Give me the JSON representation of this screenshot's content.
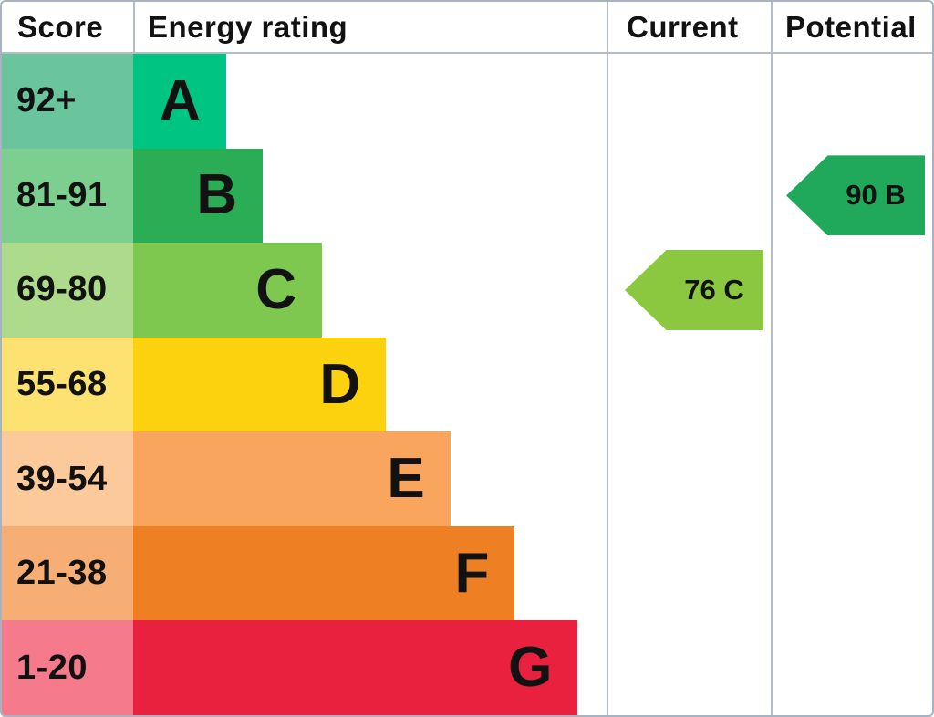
{
  "header": {
    "score": "Score",
    "energy_rating": "Energy rating",
    "current": "Current",
    "potential": "Potential"
  },
  "bands": [
    {
      "letter": "A",
      "score_range": "92+",
      "row_color": "#6ac49c",
      "bar_color": "#00c482",
      "bar_width_pct": 19.6
    },
    {
      "letter": "B",
      "score_range": "81-91",
      "row_color": "#7ccf8e",
      "bar_color": "#2bad55",
      "bar_width_pct": 27.4
    },
    {
      "letter": "C",
      "score_range": "69-80",
      "row_color": "#aeda8c",
      "bar_color": "#7ec850",
      "bar_width_pct": 39.9
    },
    {
      "letter": "D",
      "score_range": "55-68",
      "row_color": "#fde272",
      "bar_color": "#fcd20e",
      "bar_width_pct": 53.4
    },
    {
      "letter": "E",
      "score_range": "39-54",
      "row_color": "#fcc99b",
      "bar_color": "#faa55e",
      "bar_width_pct": 67.0
    },
    {
      "letter": "F",
      "score_range": "21-38",
      "row_color": "#f6ae74",
      "bar_color": "#ee8023",
      "bar_width_pct": 80.6
    },
    {
      "letter": "G",
      "score_range": "1-20",
      "row_color": "#f47a8c",
      "bar_color": "#e9213f",
      "bar_width_pct": 93.9
    }
  ],
  "current": {
    "label": "76 C",
    "value": 76,
    "band": "C",
    "arrow_color": "#8cc83f"
  },
  "potential": {
    "label": "90 B",
    "value": 90,
    "band": "B",
    "arrow_color": "#20a95b"
  },
  "colors": {
    "grid_line": "#b3bcc7",
    "outer_border": "#a9b3c0",
    "text": "#121212"
  },
  "chart_data": {
    "type": "bar",
    "title": "Energy rating (EPC band chart)",
    "columns": [
      "Score",
      "Energy rating",
      "Current",
      "Potential"
    ],
    "categories": [
      "A",
      "B",
      "C",
      "D",
      "E",
      "F",
      "G"
    ],
    "score_ranges": [
      "92+",
      "81-91",
      "69-80",
      "55-68",
      "39-54",
      "21-38",
      "1-20"
    ],
    "bar_length_pct": [
      19.6,
      27.4,
      39.9,
      53.4,
      67.0,
      80.6,
      93.9
    ],
    "band_colors": [
      "#00c482",
      "#2bad55",
      "#7ec850",
      "#fcd20e",
      "#faa55e",
      "#ee8023",
      "#e9213f"
    ],
    "current": {
      "score": 76,
      "band": "C"
    },
    "potential": {
      "score": 90,
      "band": "B"
    },
    "legend_position": "none",
    "grid": false
  }
}
